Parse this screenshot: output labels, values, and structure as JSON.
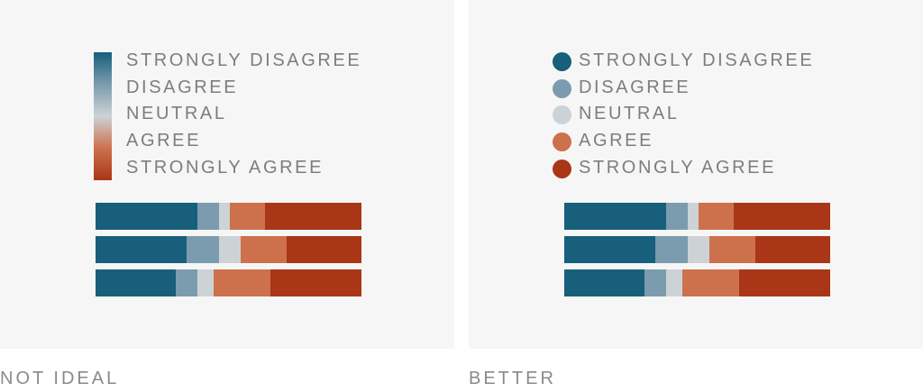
{
  "colors": {
    "strongly_disagree": "#175f7a",
    "disagree": "#7b9cae",
    "neutral": "#cdd2d6",
    "agree": "#cd714c",
    "strongly_agree": "#a93617"
  },
  "chart_data": [
    {
      "type": "bar",
      "orientation": "horizontal",
      "stacked": true,
      "normalized": true,
      "legend_style": "gradient",
      "legend": [
        "STRONGLY DISAGREE",
        "DISAGREE",
        "NEUTRAL",
        "AGREE",
        "STRONGLY AGREE"
      ],
      "rows": [
        [
          38,
          8,
          4,
          13,
          36
        ],
        [
          34,
          12,
          8,
          17,
          28
        ],
        [
          30,
          8,
          6,
          21,
          34
        ]
      ],
      "caption": "NOT IDEAL"
    },
    {
      "type": "bar",
      "orientation": "horizontal",
      "stacked": true,
      "normalized": true,
      "legend_style": "dots",
      "legend": [
        "STRONGLY DISAGREE",
        "DISAGREE",
        "NEUTRAL",
        "AGREE",
        "STRONGLY AGREE"
      ],
      "rows": [
        [
          38,
          8,
          4,
          13,
          36
        ],
        [
          34,
          12,
          8,
          17,
          28
        ],
        [
          30,
          8,
          6,
          21,
          34
        ]
      ],
      "caption": "BETTER"
    }
  ]
}
